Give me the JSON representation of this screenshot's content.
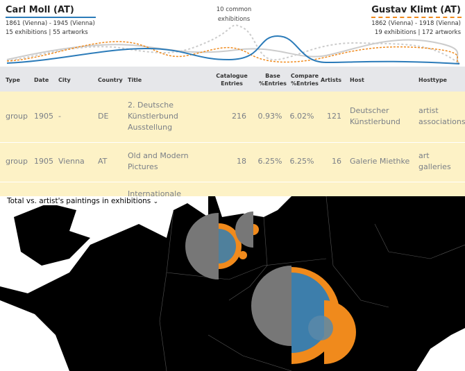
{
  "header": {
    "left": {
      "name": "Carl Moll (AT)",
      "life": "1861 (Vienna) - 1945 (Vienna)",
      "stats": "15 exhibitions | 55 artworks"
    },
    "center": {
      "common": "10 common exhibitions"
    },
    "right": {
      "name": "Gustav Klimt (AT)",
      "life": "1862 (Vienna) - 1918 (Vienna)",
      "stats": "19 exhibitions | 172 artworks"
    }
  },
  "table": {
    "columns": [
      "Type",
      "Date",
      "City",
      "Country",
      "Title",
      "Catalogue Entries",
      "Base %Entries",
      "Compare %Entries",
      "Artists",
      "Host",
      "Hosttype"
    ],
    "rows": [
      [
        "group",
        "1905",
        "-",
        "DE",
        "2. Deutsche Künstlerbund Ausstellung",
        "216",
        "0.93%",
        "6.02%",
        "121",
        "Deutscher Künstlerbund",
        "artist associations"
      ],
      [
        "group",
        "1905",
        "Vienna",
        "AT",
        "Old and Modern Pictures",
        "18",
        "6.25%",
        "6.25%",
        "16",
        "Galerie Miethke",
        "art galleries"
      ]
    ],
    "clipped_row_title": "Internationale"
  },
  "map": {
    "selector": "Total vs. artist's paintings in exhibitions"
  }
}
